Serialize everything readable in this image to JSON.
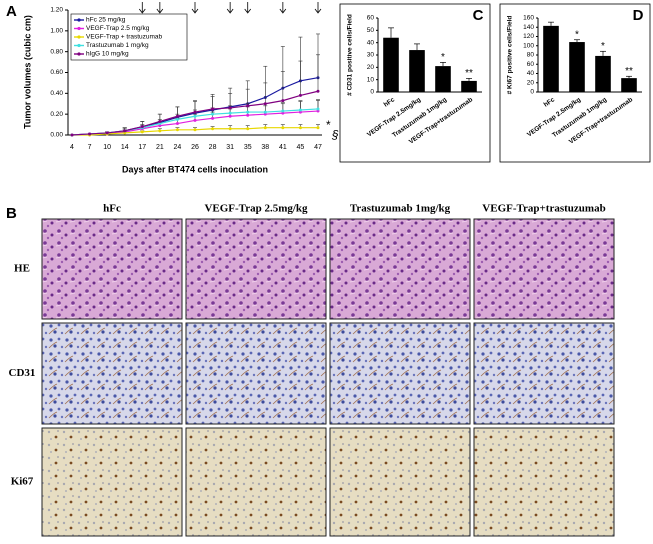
{
  "chart_data": [
    {
      "type": "line",
      "panel_label": "A",
      "y_label": "Tumor volumes (cubic cm)",
      "x_label": "Days after BT474 cells inoculation",
      "categories": [
        "4",
        "7",
        "10",
        "14",
        "17",
        "21",
        "24",
        "26",
        "28",
        "31",
        "35",
        "38",
        "41",
        "45",
        "47"
      ],
      "series": [
        {
          "name": "hFc 25 mg/kg",
          "color": "#1a1aa0",
          "values": [
            0,
            0.01,
            0.02,
            0.04,
            0.08,
            0.12,
            0.17,
            0.21,
            0.24,
            0.27,
            0.3,
            0.36,
            0.45,
            0.52,
            0.55
          ],
          "errors": [
            0,
            0,
            0.01,
            0.03,
            0.05,
            0.08,
            0.1,
            0.12,
            0.15,
            0.18,
            0.22,
            0.3,
            0.4,
            0.42,
            0.42
          ]
        },
        {
          "name": "VEGF-Trap 2.5 mg/kg",
          "color": "#e020e0",
          "values": [
            0,
            0.01,
            0.01,
            0.03,
            0.06,
            0.09,
            0.11,
            0.14,
            0.16,
            0.18,
            0.19,
            0.2,
            0.21,
            0.22,
            0.23
          ],
          "errors": [
            0,
            0,
            0.01,
            0.02,
            0.03,
            0.04,
            0.05,
            0.06,
            0.06,
            0.07,
            0.08,
            0.08,
            0.09,
            0.1,
            0.1
          ]
        },
        {
          "name": "VEGF-Trap + trastuzumab",
          "color": "#e8d800",
          "values": [
            0,
            0,
            0.01,
            0.02,
            0.03,
            0.04,
            0.05,
            0.05,
            0.06,
            0.06,
            0.06,
            0.07,
            0.07,
            0.07,
            0.07
          ],
          "errors": [
            0,
            0,
            0,
            0.01,
            0.01,
            0.02,
            0.02,
            0.02,
            0.02,
            0.03,
            0.03,
            0.03,
            0.03,
            0.03,
            0.03
          ]
        },
        {
          "name": "Trastuzumab 1 mg/kg",
          "color": "#40e0e0",
          "values": [
            0,
            0.01,
            0.02,
            0.04,
            0.07,
            0.11,
            0.15,
            0.18,
            0.2,
            0.21,
            0.22,
            0.22,
            0.23,
            0.24,
            0.25
          ],
          "errors": [
            0,
            0,
            0.01,
            0.02,
            0.03,
            0.04,
            0.05,
            0.06,
            0.06,
            0.07,
            0.08,
            0.08,
            0.08,
            0.09,
            0.09
          ]
        },
        {
          "name": "hIgG 10 mg/kg",
          "color": "#800080",
          "values": [
            0,
            0.01,
            0.02,
            0.04,
            0.08,
            0.13,
            0.18,
            0.22,
            0.25,
            0.26,
            0.28,
            0.3,
            0.33,
            0.38,
            0.42
          ],
          "errors": [
            0,
            0,
            0.01,
            0.03,
            0.05,
            0.07,
            0.09,
            0.1,
            0.12,
            0.14,
            0.16,
            0.2,
            0.28,
            0.33,
            0.35
          ]
        }
      ],
      "ylim": [
        0,
        1.2
      ],
      "yticks": [
        {
          "value": 0,
          "label": "0.00"
        },
        {
          "value": 0.2,
          "label": "0.20"
        },
        {
          "value": 0.4,
          "label": "0.40"
        },
        {
          "value": 0.6,
          "label": "0.60"
        },
        {
          "value": 0.8,
          "label": "0.80"
        },
        {
          "value": 1,
          "label": "1.00"
        },
        {
          "value": 1.2,
          "label": "1.20"
        }
      ],
      "arrows_at": [
        "17",
        "21",
        "26",
        "31",
        "35",
        "41",
        "47"
      ],
      "annotations": [
        "*",
        "§"
      ]
    },
    {
      "type": "bar",
      "panel_label": "C",
      "y_label": "# CD31 positive cells/Field",
      "categories": [
        "hFc",
        "VEGF-Trap 2.5mg/kg",
        "Trastuzumab 1mg/kg",
        "VEGF-Trap+trastuzumab"
      ],
      "values": [
        44,
        34,
        21,
        9
      ],
      "errors": [
        8,
        5,
        3,
        2
      ],
      "markers": [
        null,
        null,
        "*",
        "**"
      ],
      "color": "#000000",
      "ylim": [
        0,
        60
      ],
      "yticks": [
        0,
        10,
        20,
        30,
        40,
        50,
        60
      ]
    },
    {
      "type": "bar",
      "panel_label": "D",
      "y_label": "# Ki67 positive cells/Field",
      "categories": [
        "hFc",
        "VEGF-Trap 2.5mg/kg",
        "Trastuzumab 1mg/kg",
        "VEGF-Trap+trastuzumab"
      ],
      "values": [
        143,
        108,
        78,
        30
      ],
      "errors": [
        8,
        5,
        10,
        4
      ],
      "markers": [
        null,
        "*",
        "*",
        "**"
      ],
      "color": "#000000",
      "ylim": [
        0,
        160
      ],
      "yticks": [
        0,
        20,
        40,
        60,
        80,
        100,
        120,
        140,
        160
      ]
    }
  ],
  "panel_b": {
    "label": "B",
    "columns": [
      "hFc",
      "VEGF-Trap 2.5mg/kg",
      "Trastuzumab 1mg/kg",
      "VEGF-Trap+trastuzumab"
    ],
    "rows": [
      "HE",
      "CD31",
      "Ki67"
    ]
  }
}
